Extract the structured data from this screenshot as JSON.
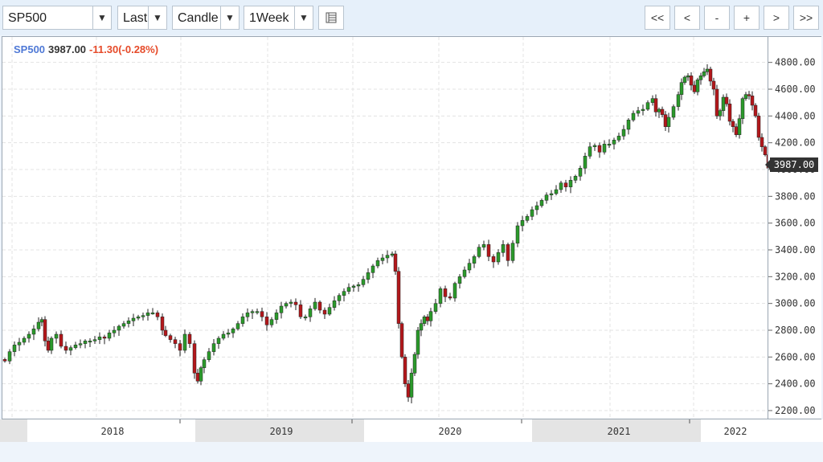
{
  "toolbar": {
    "symbol": "SP500",
    "field": "Last",
    "chart_style": "Candle",
    "period": "1Week",
    "settings_icon": "table-settings-icon",
    "nav_buttons": [
      "<<",
      "<",
      "-",
      "+",
      ">",
      ">>"
    ]
  },
  "legend": {
    "symbol": "SP500",
    "last": "3987.00",
    "change": "-11.30(-0.28%)"
  },
  "colors": {
    "up": "#2b9a2b",
    "down": "#b3171b",
    "symbol": "#4f79d6",
    "change": "#e64b2a"
  },
  "chart_data": {
    "type": "candlestick",
    "ytick_labels": [
      "2200.00",
      "2400.00",
      "2600.00",
      "2800.00",
      "3000.00",
      "3200.00",
      "3400.00",
      "3600.00",
      "3800.00",
      "4000.00",
      "4200.00",
      "4400.00",
      "4600.00",
      "4800.00"
    ],
    "yticks": [
      2200,
      2400,
      2600,
      2800,
      3000,
      3200,
      3400,
      3600,
      3800,
      4000,
      4200,
      4400,
      4600,
      4800
    ],
    "ylim": [
      2140,
      4990
    ],
    "x_labels": [
      "2018",
      "2019",
      "2020",
      "2021",
      "2022"
    ],
    "last_price_label": "3987.00",
    "grid": true,
    "series": [
      {
        "name": "SP500",
        "points": [
          [
            0,
            2570
          ],
          [
            6,
            2640
          ],
          [
            12,
            2690
          ],
          [
            18,
            2710
          ],
          [
            24,
            2740
          ],
          [
            30,
            2770
          ],
          [
            36,
            2810
          ],
          [
            42,
            2860
          ],
          [
            46,
            2880
          ],
          [
            50,
            2720
          ],
          [
            54,
            2650
          ],
          [
            58,
            2740
          ],
          [
            64,
            2770
          ],
          [
            70,
            2680
          ],
          [
            76,
            2650
          ],
          [
            82,
            2670
          ],
          [
            88,
            2690
          ],
          [
            94,
            2700
          ],
          [
            100,
            2720
          ],
          [
            106,
            2720
          ],
          [
            112,
            2730
          ],
          [
            118,
            2750
          ],
          [
            124,
            2740
          ],
          [
            130,
            2780
          ],
          [
            136,
            2800
          ],
          [
            142,
            2830
          ],
          [
            148,
            2850
          ],
          [
            154,
            2870
          ],
          [
            160,
            2890
          ],
          [
            166,
            2900
          ],
          [
            172,
            2910
          ],
          [
            178,
            2930
          ],
          [
            184,
            2930
          ],
          [
            190,
            2900
          ],
          [
            196,
            2800
          ],
          [
            200,
            2760
          ],
          [
            206,
            2730
          ],
          [
            212,
            2700
          ],
          [
            218,
            2650
          ],
          [
            224,
            2770
          ],
          [
            230,
            2700
          ],
          [
            236,
            2480
          ],
          [
            240,
            2420
          ],
          [
            244,
            2520
          ],
          [
            248,
            2580
          ],
          [
            254,
            2640
          ],
          [
            260,
            2700
          ],
          [
            266,
            2740
          ],
          [
            272,
            2770
          ],
          [
            278,
            2780
          ],
          [
            284,
            2810
          ],
          [
            290,
            2850
          ],
          [
            296,
            2900
          ],
          [
            302,
            2930
          ],
          [
            308,
            2940
          ],
          [
            314,
            2940
          ],
          [
            320,
            2900
          ],
          [
            326,
            2840
          ],
          [
            332,
            2880
          ],
          [
            338,
            2930
          ],
          [
            344,
            2980
          ],
          [
            350,
            3000
          ],
          [
            356,
            3010
          ],
          [
            362,
            2990
          ],
          [
            368,
            2900
          ],
          [
            374,
            2900
          ],
          [
            380,
            2960
          ],
          [
            386,
            3010
          ],
          [
            392,
            2950
          ],
          [
            398,
            2920
          ],
          [
            404,
            2970
          ],
          [
            410,
            3020
          ],
          [
            416,
            3060
          ],
          [
            422,
            3090
          ],
          [
            428,
            3120
          ],
          [
            434,
            3130
          ],
          [
            440,
            3140
          ],
          [
            446,
            3180
          ],
          [
            452,
            3230
          ],
          [
            458,
            3280
          ],
          [
            464,
            3320
          ],
          [
            470,
            3340
          ],
          [
            476,
            3360
          ],
          [
            482,
            3370
          ],
          [
            486,
            3240
          ],
          [
            490,
            2850
          ],
          [
            494,
            2600
          ],
          [
            498,
            2400
          ],
          [
            502,
            2300
          ],
          [
            506,
            2480
          ],
          [
            510,
            2620
          ],
          [
            514,
            2800
          ],
          [
            518,
            2850
          ],
          [
            522,
            2900
          ],
          [
            526,
            2870
          ],
          [
            530,
            2940
          ],
          [
            536,
            3000
          ],
          [
            542,
            3110
          ],
          [
            548,
            3050
          ],
          [
            554,
            3040
          ],
          [
            560,
            3150
          ],
          [
            566,
            3200
          ],
          [
            572,
            3250
          ],
          [
            578,
            3300
          ],
          [
            584,
            3350
          ],
          [
            590,
            3420
          ],
          [
            596,
            3440
          ],
          [
            602,
            3350
          ],
          [
            608,
            3310
          ],
          [
            614,
            3380
          ],
          [
            620,
            3440
          ],
          [
            626,
            3320
          ],
          [
            632,
            3450
          ],
          [
            638,
            3580
          ],
          [
            644,
            3620
          ],
          [
            650,
            3650
          ],
          [
            656,
            3700
          ],
          [
            662,
            3730
          ],
          [
            668,
            3770
          ],
          [
            674,
            3810
          ],
          [
            680,
            3820
          ],
          [
            686,
            3850
          ],
          [
            692,
            3900
          ],
          [
            698,
            3870
          ],
          [
            704,
            3920
          ],
          [
            710,
            3950
          ],
          [
            716,
            4010
          ],
          [
            722,
            4100
          ],
          [
            728,
            4170
          ],
          [
            734,
            4180
          ],
          [
            740,
            4130
          ],
          [
            746,
            4190
          ],
          [
            752,
            4190
          ],
          [
            758,
            4220
          ],
          [
            764,
            4250
          ],
          [
            770,
            4300
          ],
          [
            776,
            4370
          ],
          [
            782,
            4420
          ],
          [
            788,
            4440
          ],
          [
            794,
            4450
          ],
          [
            800,
            4500
          ],
          [
            806,
            4530
          ],
          [
            810,
            4430
          ],
          [
            814,
            4450
          ],
          [
            818,
            4410
          ],
          [
            822,
            4320
          ],
          [
            826,
            4390
          ],
          [
            832,
            4470
          ],
          [
            838,
            4560
          ],
          [
            842,
            4650
          ],
          [
            846,
            4690
          ],
          [
            850,
            4700
          ],
          [
            854,
            4630
          ],
          [
            858,
            4580
          ],
          [
            862,
            4670
          ],
          [
            866,
            4700
          ],
          [
            870,
            4730
          ],
          [
            874,
            4750
          ],
          [
            878,
            4660
          ],
          [
            882,
            4600
          ],
          [
            886,
            4400
          ],
          [
            890,
            4440
          ],
          [
            894,
            4540
          ],
          [
            898,
            4490
          ],
          [
            902,
            4360
          ],
          [
            906,
            4320
          ],
          [
            910,
            4260
          ],
          [
            914,
            4380
          ],
          [
            918,
            4530
          ],
          [
            922,
            4560
          ],
          [
            926,
            4550
          ],
          [
            930,
            4480
          ],
          [
            934,
            4400
          ],
          [
            938,
            4240
          ],
          [
            942,
            4170
          ],
          [
            946,
            4110
          ],
          [
            950,
            4010
          ],
          [
            954,
            3987
          ]
        ]
      }
    ]
  }
}
